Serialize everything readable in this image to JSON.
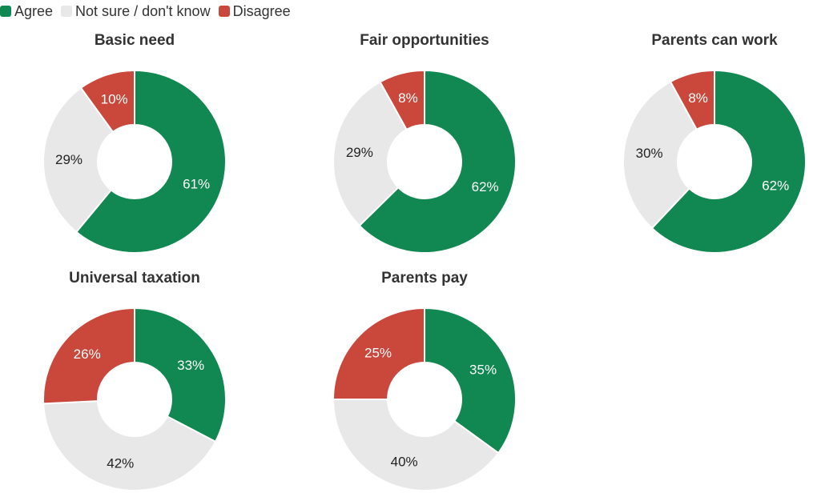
{
  "chart_data": {
    "type": "pie",
    "variant": "donut",
    "legend_position": "top-left",
    "legend": [
      {
        "name": "Agree",
        "color": "#118752"
      },
      {
        "name": "Not sure / don't know",
        "color": "#e8e8e8"
      },
      {
        "name": "Disagree",
        "color": "#c9473b"
      }
    ],
    "charts": [
      {
        "title": "Basic need",
        "values": {
          "Agree": 61,
          "Not sure / don't know": 29,
          "Disagree": 10
        }
      },
      {
        "title": "Fair opportunities",
        "values": {
          "Agree": 62,
          "Not sure / don't know": 29,
          "Disagree": 8
        }
      },
      {
        "title": "Parents can work",
        "values": {
          "Agree": 62,
          "Not sure / don't know": 30,
          "Disagree": 8
        }
      },
      {
        "title": "Universal taxation",
        "values": {
          "Agree": 33,
          "Not sure / don't know": 42,
          "Disagree": 26
        }
      },
      {
        "title": "Parents pay",
        "values": {
          "Agree": 35,
          "Not sure / don't know": 40,
          "Disagree": 25
        }
      }
    ]
  }
}
